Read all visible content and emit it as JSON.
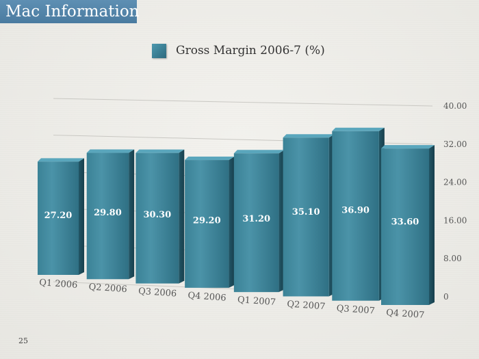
{
  "slide": {
    "title": "Mac Information",
    "page_number": "25"
  },
  "colors": {
    "bar_front": "#3b8296",
    "bar_side": "#225565",
    "bar_top": "#5aa6bc",
    "title_bg": "#4f80a5"
  },
  "chart_data": {
    "type": "bar",
    "title": "",
    "legend": [
      "Gross Margin 2006-7 (%)"
    ],
    "legend_position": "top",
    "categories": [
      "Q1 2006",
      "Q2 2006",
      "Q3 2006",
      "Q4 2006",
      "Q1 2007",
      "Q2 2007",
      "Q3 2007",
      "Q4 2007"
    ],
    "series": [
      {
        "name": "Gross Margin 2006-7 (%)",
        "values": [
          27.2,
          29.8,
          30.3,
          29.2,
          31.2,
          35.1,
          36.9,
          33.6
        ],
        "value_labels": [
          "27.20",
          "29.80",
          "30.30",
          "29.20",
          "31.20",
          "35.10",
          "36.90",
          "33.60"
        ]
      }
    ],
    "y_ticks": [
      "0",
      "8.00",
      "16.00",
      "24.00",
      "32.00",
      "40.00"
    ],
    "ylim": [
      0,
      40
    ],
    "grid": true,
    "perspective": "3d"
  }
}
